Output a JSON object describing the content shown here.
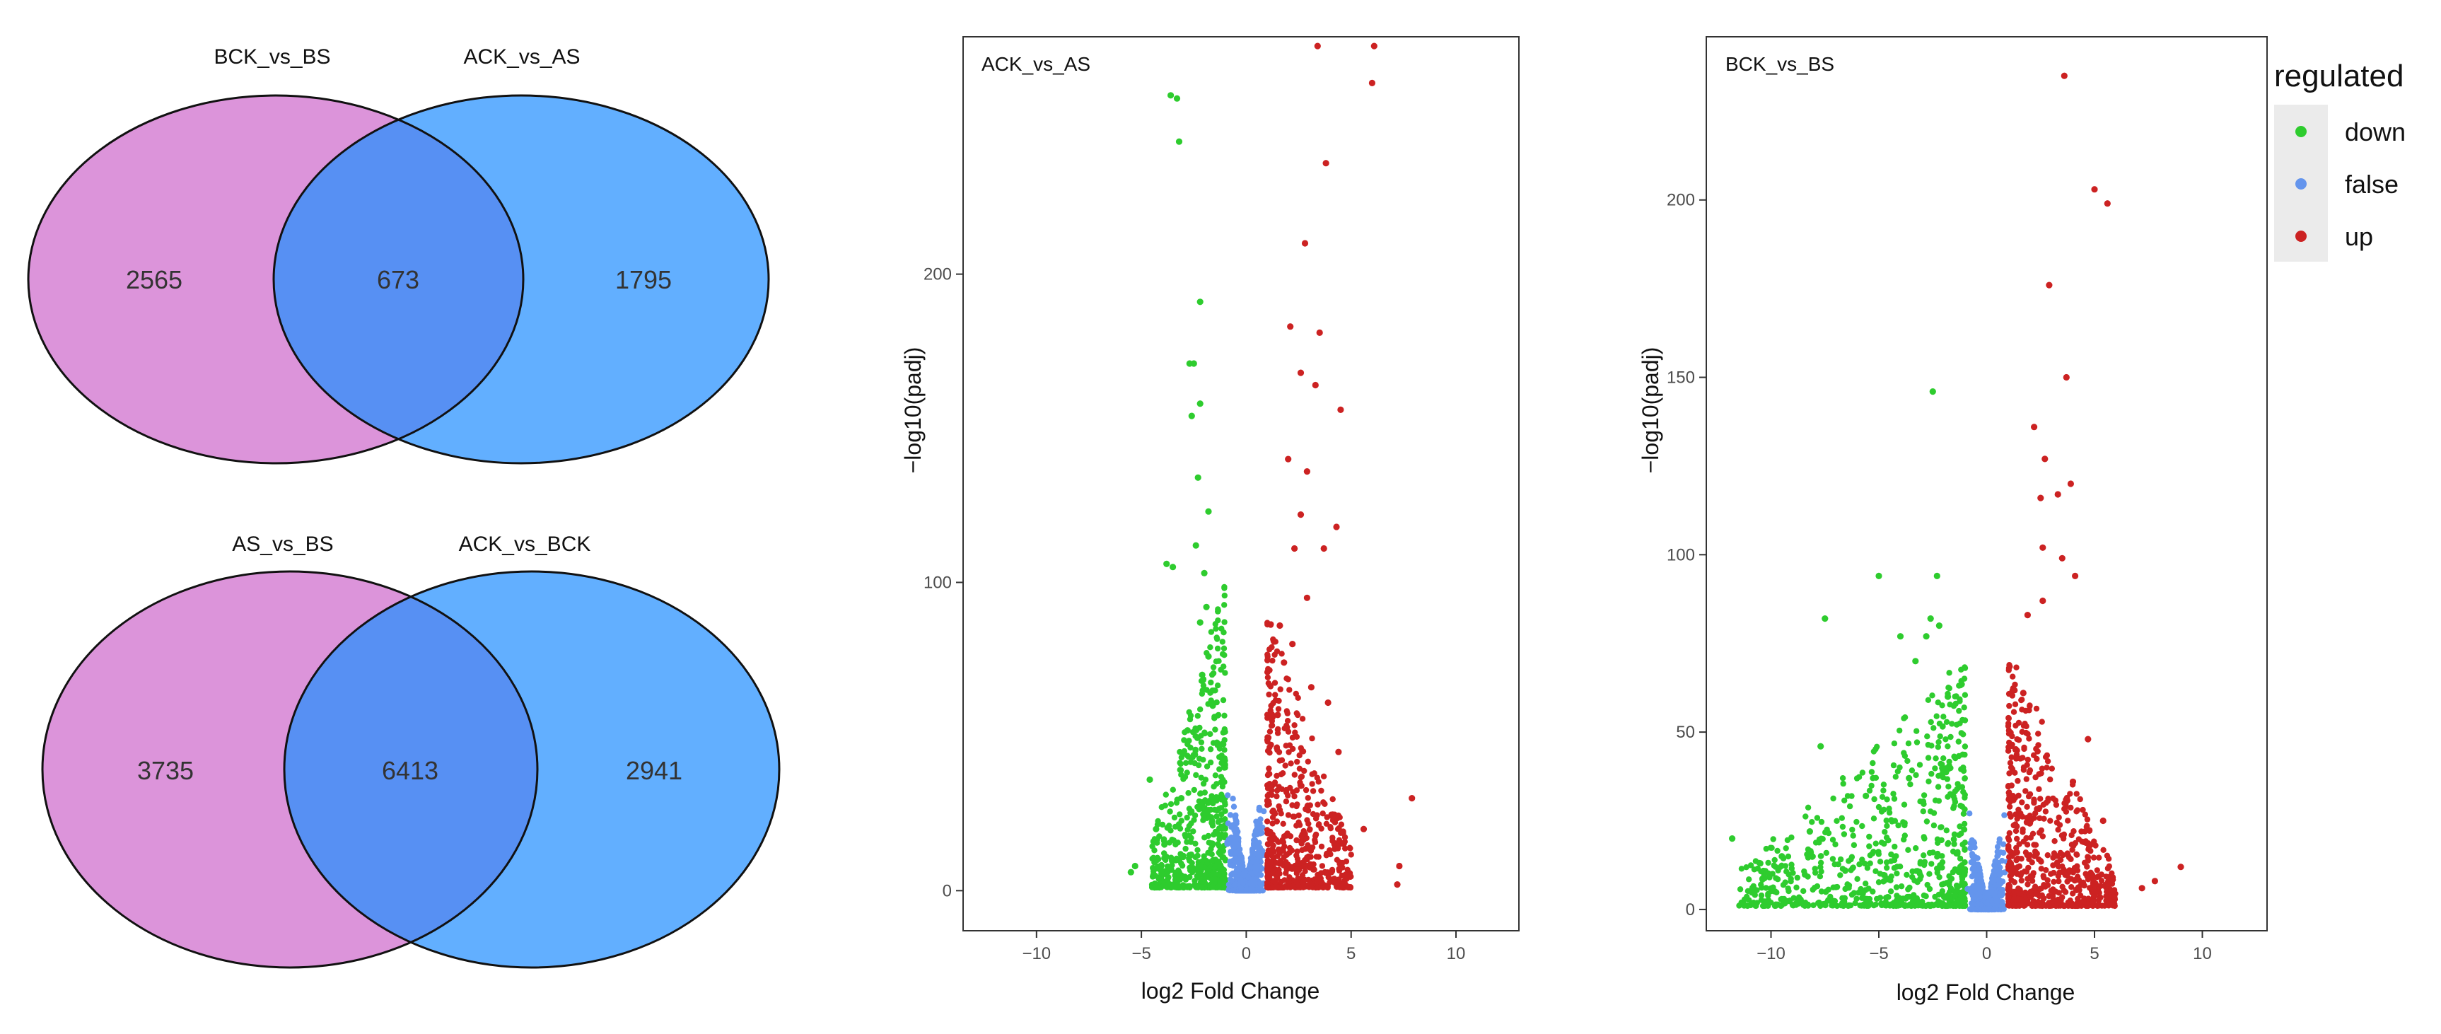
{
  "colors": {
    "set_left": "#DC94DA",
    "set_right": "#62AFFF",
    "overlap": "#5790F3",
    "down": "#2ECC2E",
    "false": "#6495ED",
    "up": "#CC2222"
  },
  "venns": [
    {
      "left_name": "BCK_vs_BS",
      "right_name": "ACK_vs_AS",
      "left_only": "2565",
      "overlap": "673",
      "right_only": "1795"
    },
    {
      "left_name": "AS_vs_BS",
      "right_name": "ACK_vs_BCK",
      "left_only": "3735",
      "overlap": "6413",
      "right_only": "2941"
    }
  ],
  "legend": {
    "title": "regulated",
    "items": [
      {
        "label": "down",
        "color": "#2ECC2E"
      },
      {
        "label": "false",
        "color": "#6495ED"
      },
      {
        "label": "up",
        "color": "#CC2222"
      }
    ]
  },
  "chart_data": [
    {
      "type": "scatter",
      "label": "ACK_vs_AS",
      "xlabel": "log2 Fold Change",
      "ylabel": "−log10(padj)",
      "xlim": [
        -13.5,
        13
      ],
      "ylim": [
        -13,
        277
      ],
      "xticks": [
        -10,
        -5,
        0,
        5,
        10
      ],
      "yticks": [
        0,
        100,
        200
      ],
      "grid": false,
      "down_points": [
        [
          -3.6,
          258
        ],
        [
          -3.3,
          257
        ],
        [
          -3.2,
          243
        ],
        [
          -2.2,
          191
        ],
        [
          -2.7,
          171
        ],
        [
          -2.5,
          171
        ],
        [
          -2.2,
          158
        ],
        [
          -2.6,
          154
        ],
        [
          -2.3,
          134
        ],
        [
          -1.8,
          123
        ],
        [
          -2.4,
          112
        ],
        [
          -3.8,
          106
        ],
        [
          -3.5,
          105
        ],
        [
          -2.0,
          103
        ],
        [
          -1.9,
          92
        ],
        [
          -2.2,
          87
        ],
        [
          -1.8,
          76
        ],
        [
          -2.1,
          70
        ],
        [
          -4.6,
          36
        ],
        [
          -5.3,
          8
        ],
        [
          -5.5,
          6
        ],
        [
          -4.3,
          20
        ],
        [
          -3.9,
          15
        ],
        [
          -3.1,
          30
        ],
        [
          -2.8,
          52
        ],
        [
          -2.5,
          44
        ],
        [
          -1.6,
          60
        ],
        [
          -1.4,
          48
        ]
      ],
      "up_points": [
        [
          3.4,
          274
        ],
        [
          6.1,
          274
        ],
        [
          6.0,
          262
        ],
        [
          3.8,
          236
        ],
        [
          2.8,
          210
        ],
        [
          2.1,
          183
        ],
        [
          3.5,
          181
        ],
        [
          2.6,
          168
        ],
        [
          3.3,
          164
        ],
        [
          4.5,
          156
        ],
        [
          2.0,
          140
        ],
        [
          2.9,
          136
        ],
        [
          2.6,
          122
        ],
        [
          4.3,
          118
        ],
        [
          2.3,
          111
        ],
        [
          3.7,
          111
        ],
        [
          2.9,
          95
        ],
        [
          1.6,
          86
        ],
        [
          2.2,
          80
        ],
        [
          7.9,
          30
        ],
        [
          7.3,
          8
        ],
        [
          7.2,
          2
        ],
        [
          4.4,
          45
        ],
        [
          5.6,
          20
        ],
        [
          3.9,
          61
        ],
        [
          3.1,
          66
        ],
        [
          1.8,
          74
        ],
        [
          1.5,
          57
        ]
      ],
      "dense_clouds": [
        {
          "class": "down",
          "x_range": [
            -4.5,
            -1.0
          ],
          "y_max": 100,
          "count": 600
        },
        {
          "class": "false",
          "x_range": [
            -1.0,
            1.0
          ],
          "y_max": 44,
          "count": 900
        },
        {
          "class": "up",
          "x_range": [
            1.0,
            5.0
          ],
          "y_max": 90,
          "count": 600
        }
      ]
    },
    {
      "type": "scatter",
      "label": "BCK_vs_BS",
      "xlabel": "log2 Fold Change",
      "ylabel": "−log10(padj)",
      "xlim": [
        -13,
        13
      ],
      "ylim": [
        -6,
        246
      ],
      "xticks": [
        -10,
        -5,
        0,
        5,
        10
      ],
      "yticks": [
        0,
        50,
        100,
        150,
        200
      ],
      "grid": false,
      "down_points": [
        [
          -2.5,
          146
        ],
        [
          -5.0,
          94
        ],
        [
          -2.3,
          94
        ],
        [
          -2.6,
          82
        ],
        [
          -7.5,
          82
        ],
        [
          -2.2,
          80
        ],
        [
          -2.8,
          77
        ],
        [
          -4.0,
          77
        ],
        [
          -3.3,
          70
        ],
        [
          -7.7,
          46
        ],
        [
          -11.8,
          20
        ],
        [
          -8.2,
          22
        ],
        [
          -9.5,
          15
        ],
        [
          -10.5,
          13
        ],
        [
          -3.6,
          37
        ],
        [
          -5.6,
          32
        ],
        [
          -1.8,
          60
        ]
      ],
      "up_points": [
        [
          3.6,
          235
        ],
        [
          5.0,
          203
        ],
        [
          5.6,
          199
        ],
        [
          2.9,
          176
        ],
        [
          3.7,
          150
        ],
        [
          2.2,
          136
        ],
        [
          2.7,
          127
        ],
        [
          3.3,
          117
        ],
        [
          3.9,
          120
        ],
        [
          2.5,
          116
        ],
        [
          2.6,
          102
        ],
        [
          3.5,
          99
        ],
        [
          4.1,
          94
        ],
        [
          2.6,
          87
        ],
        [
          1.9,
          83
        ],
        [
          9.0,
          12
        ],
        [
          7.8,
          8
        ],
        [
          7.2,
          6
        ],
        [
          5.4,
          25
        ],
        [
          4.7,
          48
        ],
        [
          4.0,
          36
        ],
        [
          1.7,
          61
        ]
      ],
      "dense_clouds": [
        {
          "class": "down",
          "x_range": [
            -11.5,
            -1.0
          ],
          "y_max": 70,
          "count": 750
        },
        {
          "class": "false",
          "x_range": [
            -1.0,
            1.0
          ],
          "y_max": 32,
          "count": 900
        },
        {
          "class": "up",
          "x_range": [
            1.0,
            6.0
          ],
          "y_max": 72,
          "count": 650
        }
      ]
    }
  ]
}
